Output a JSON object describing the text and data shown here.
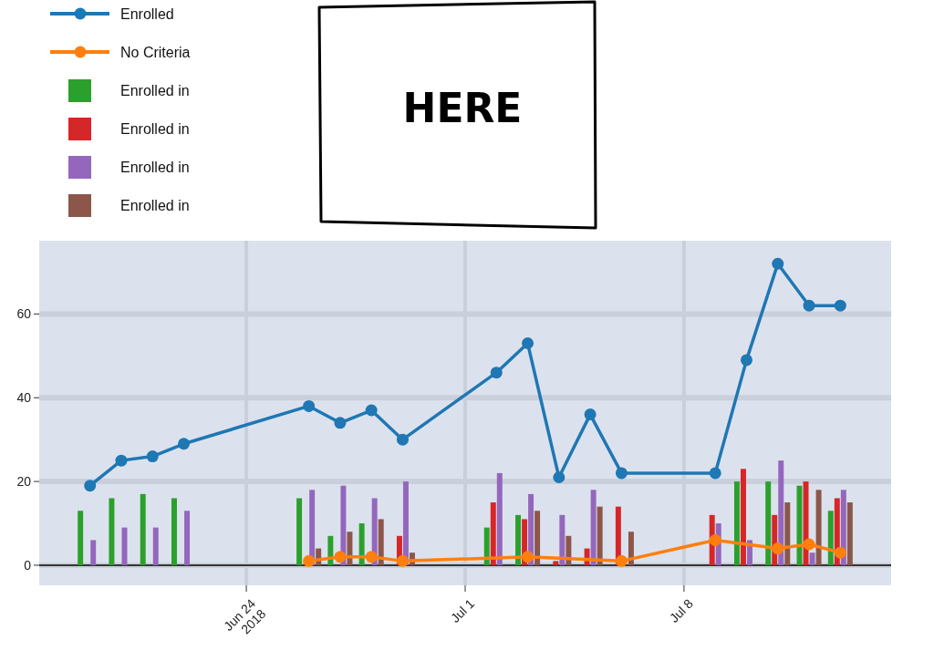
{
  "chart_data": {
    "type": "bar",
    "annotations": [
      "HERE"
    ],
    "x": [
      "2018-06-19",
      "2018-06-20",
      "2018-06-21",
      "2018-06-22",
      "2018-06-26",
      "2018-06-27",
      "2018-06-28",
      "2018-06-29",
      "2018-07-02",
      "2018-07-03",
      "2018-07-04",
      "2018-07-05",
      "2018-07-06",
      "2018-07-09",
      "2018-07-10",
      "2018-07-11",
      "2018-07-12",
      "2018-07-13"
    ],
    "series": [
      {
        "name": "Enrolled",
        "type": "line",
        "color": "#1f77b4",
        "values": [
          19,
          25,
          26,
          29,
          38,
          34,
          37,
          30,
          46,
          53,
          21,
          36,
          22,
          22,
          49,
          72,
          62,
          62
        ]
      },
      {
        "name": "No Criteria",
        "type": "line",
        "color": "#ff7f0e",
        "x": [
          "2018-06-26",
          "2018-06-27",
          "2018-06-28",
          "2018-06-29",
          "2018-07-03",
          "2018-07-06",
          "2018-07-09",
          "2018-07-11",
          "2018-07-12",
          "2018-07-13"
        ],
        "values": [
          1,
          2,
          2,
          1,
          2,
          1,
          6,
          4,
          5,
          3
        ]
      },
      {
        "name": "Enrolled in",
        "color": "#2ca02c",
        "values": [
          13,
          16,
          17,
          16,
          16,
          7,
          10,
          null,
          9,
          12,
          null,
          null,
          null,
          null,
          20,
          20,
          19,
          13
        ]
      },
      {
        "name": "Enrolled in",
        "color": "#d62728",
        "values": [
          null,
          null,
          null,
          null,
          null,
          null,
          null,
          7,
          15,
          11,
          1,
          4,
          14,
          12,
          23,
          12,
          20,
          16
        ]
      },
      {
        "name": "Enrolled in",
        "color": "#9467bd",
        "values": [
          6,
          9,
          9,
          13,
          18,
          19,
          16,
          20,
          22,
          17,
          12,
          18,
          null,
          10,
          6,
          25,
          3,
          18
        ]
      },
      {
        "name": "Enrolled in",
        "color": "#8c564b",
        "values": [
          null,
          null,
          null,
          null,
          4,
          8,
          11,
          3,
          null,
          13,
          7,
          14,
          8,
          null,
          null,
          15,
          18,
          15
        ]
      }
    ],
    "xlim": [
      "2018-06-17T09:00",
      "2018-07-14T15:00"
    ],
    "xticks": [
      {
        "value": "2018-06-24",
        "label": "Jun 24\n2018"
      },
      {
        "value": "2018-07-01",
        "label": "Jul 1"
      },
      {
        "value": "2018-07-08",
        "label": "Jul 8"
      }
    ],
    "ylim": [
      -4.8,
      77.5
    ],
    "yticks": [
      0,
      20,
      40,
      60
    ],
    "grid": true,
    "legend": "top left",
    "marker": "circle"
  }
}
